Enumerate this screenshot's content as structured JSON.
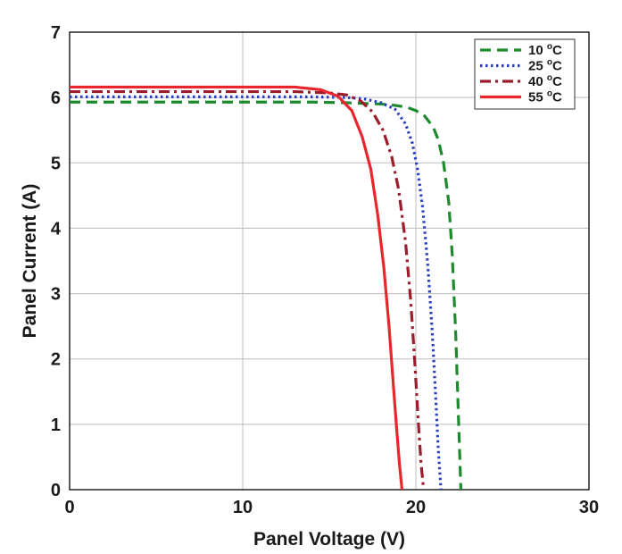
{
  "chart_data": {
    "type": "line",
    "title": "",
    "xlabel": "Panel Voltage (V)",
    "ylabel": "Panel Current (A)",
    "xlim": [
      0,
      30
    ],
    "ylim": [
      0,
      7
    ],
    "xticks": [
      0,
      10,
      20,
      30
    ],
    "yticks": [
      0,
      1,
      2,
      3,
      4,
      5,
      6,
      7
    ],
    "grid": true,
    "legend_position": "top-right",
    "series": [
      {
        "name": "10 °C",
        "label_main": "10 ",
        "label_sup": "o",
        "label_unit": "C",
        "color": "#1e8a2e",
        "dash": "dashed",
        "x": [
          0,
          14,
          16,
          17,
          18,
          18.8,
          19.5,
          20,
          20.5,
          21,
          21.3,
          21.6,
          21.9,
          22.1,
          22.3,
          22.45,
          22.6
        ],
        "y": [
          5.93,
          5.93,
          5.92,
          5.91,
          5.9,
          5.88,
          5.85,
          5.8,
          5.72,
          5.55,
          5.35,
          5.0,
          4.4,
          3.6,
          2.4,
          1.2,
          0
        ]
      },
      {
        "name": "25 °C",
        "label_main": "25 ",
        "label_sup": "o",
        "label_unit": "C",
        "color": "#2a3fbf",
        "dash": "dotted",
        "x": [
          0,
          14,
          16,
          17,
          18,
          18.8,
          19.4,
          19.8,
          20.1,
          20.4,
          20.7,
          20.95,
          21.15,
          21.3,
          21.45
        ],
        "y": [
          6.01,
          6.01,
          6.0,
          5.98,
          5.92,
          5.82,
          5.6,
          5.3,
          4.9,
          4.3,
          3.4,
          2.4,
          1.4,
          0.6,
          0
        ]
      },
      {
        "name": "40 °C",
        "label_main": "40 ",
        "label_sup": "o",
        "label_unit": "C",
        "color": "#9b1c2b",
        "dash": "dashdot",
        "x": [
          0,
          13,
          15,
          16,
          16.8,
          17.5,
          18.1,
          18.6,
          19.0,
          19.4,
          19.7,
          19.95,
          20.15,
          20.3,
          20.45
        ],
        "y": [
          6.09,
          6.09,
          6.07,
          6.04,
          5.95,
          5.78,
          5.5,
          5.1,
          4.6,
          3.8,
          2.9,
          1.9,
          1.0,
          0.4,
          0
        ]
      },
      {
        "name": "55 °C",
        "label_main": "55 ",
        "label_sup": "o",
        "label_unit": "C",
        "color": "#e8262b",
        "dash": "solid",
        "x": [
          0,
          13,
          14.5,
          15.5,
          16.3,
          16.9,
          17.4,
          17.8,
          18.15,
          18.45,
          18.7,
          18.9,
          19.05,
          19.2
        ],
        "y": [
          6.16,
          6.16,
          6.12,
          6.02,
          5.8,
          5.4,
          4.9,
          4.2,
          3.4,
          2.5,
          1.6,
          0.9,
          0.4,
          0
        ]
      }
    ]
  }
}
